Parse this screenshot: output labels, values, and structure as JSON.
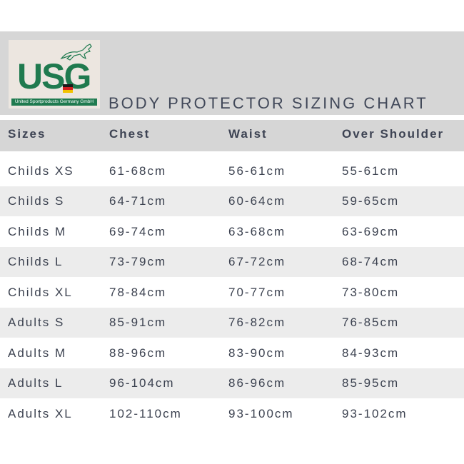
{
  "logo": {
    "letters": "USG",
    "tagline": "United Sportproducts Germany GmbH"
  },
  "title": "BODY PROTECTOR SIZING CHART",
  "table": {
    "headers": [
      "Sizes",
      "Chest",
      "Waist",
      "Over Shoulder"
    ],
    "rows": [
      [
        "Childs XS",
        "61-68cm",
        "56-61cm",
        "55-61cm"
      ],
      [
        "Childs S",
        "64-71cm",
        "60-64cm",
        "59-65cm"
      ],
      [
        "Childs M",
        "69-74cm",
        "63-68cm",
        "63-69cm"
      ],
      [
        "Childs L",
        "73-79cm",
        "67-72cm",
        "68-74cm"
      ],
      [
        "Childs XL",
        "78-84cm",
        "70-77cm",
        "73-80cm"
      ],
      [
        "Adults S",
        "85-91cm",
        "76-82cm",
        "76-85cm"
      ],
      [
        "Adults M",
        "88-96cm",
        "83-90cm",
        "84-93cm"
      ],
      [
        "Adults L",
        "96-104cm",
        "86-96cm",
        "85-95cm"
      ],
      [
        "Adults XL",
        "102-110cm",
        "93-100cm",
        "93-102cm"
      ]
    ]
  },
  "colors": {
    "brand_green": "#1f7a4f",
    "header_gray": "#d6d6d6",
    "row_alt": "#ececec",
    "text": "#3f4450"
  }
}
